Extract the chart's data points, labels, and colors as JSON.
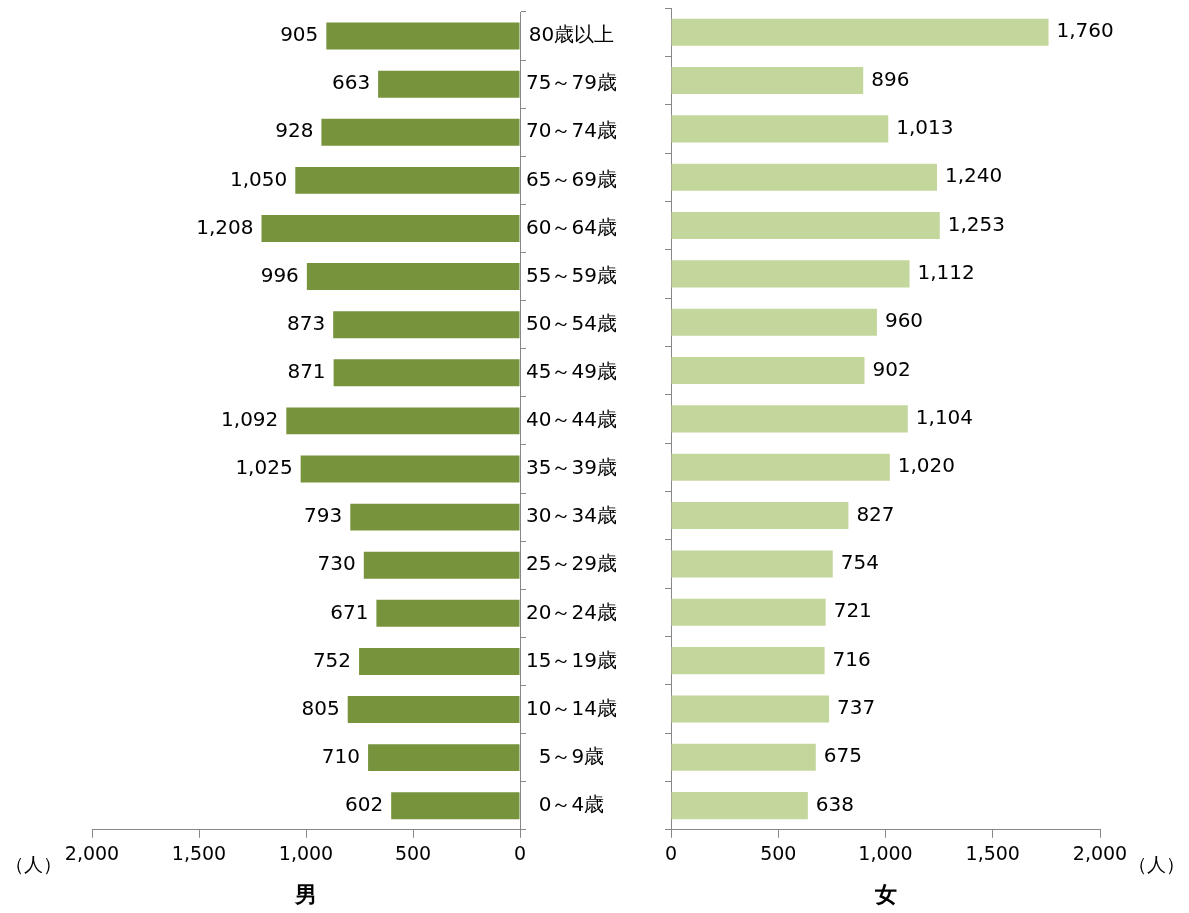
{
  "chart_data": [
    {
      "type": "bar",
      "orientation": "horizontal",
      "xlabel": "男",
      "annotations": [
        "（人）"
      ],
      "grid": false,
      "legend": false,
      "categories": [
        "80歳以上",
        "75～79歳",
        "70～74歳",
        "65～69歳",
        "60～64歳",
        "55～59歳",
        "50～54歳",
        "45～49歳",
        "40～44歳",
        "35～39歳",
        "30～34歳",
        "25～29歳",
        "20～24歳",
        "15～19歳",
        "10～14歳",
        "5～9歳",
        "0～4歳"
      ],
      "series": [
        {
          "color": "#77933c",
          "values": [
            905,
            663,
            928,
            1050,
            1208,
            996,
            873,
            871,
            1092,
            1025,
            793,
            730,
            671,
            752,
            805,
            710,
            602
          ],
          "value_labels": [
            "905",
            "663",
            "928",
            "1,050",
            "1,208",
            "996",
            "873",
            "871",
            "1,092",
            "1,025",
            "793",
            "730",
            "671",
            "752",
            "805",
            "710",
            "602"
          ]
        }
      ],
      "xlim": [
        2000,
        0
      ],
      "xticks": [
        {
          "value": 2000,
          "label": "2,000"
        },
        {
          "value": 1500,
          "label": "1,500"
        },
        {
          "value": 1000,
          "label": "1,000"
        },
        {
          "value": 500,
          "label": "500"
        },
        {
          "value": 0,
          "label": "0"
        }
      ]
    },
    {
      "type": "bar",
      "orientation": "horizontal",
      "xlabel": "女",
      "annotations": [
        "（人）"
      ],
      "grid": false,
      "legend": false,
      "tick_labels": "x",
      "categories": [
        null,
        null,
        null,
        null,
        null,
        null,
        null,
        null,
        null,
        null,
        null,
        null,
        null,
        null,
        null,
        null,
        null
      ],
      "series": [
        {
          "color": "#c3d69b",
          "values": [
            1760,
            896,
            1013,
            1240,
            1253,
            1112,
            960,
            902,
            1104,
            1020,
            827,
            754,
            721,
            716,
            737,
            675,
            638
          ],
          "value_labels": [
            "1,760",
            "896",
            "1,013",
            "1,240",
            "1,253",
            "1,112",
            "960",
            "902",
            "1,104",
            "1,020",
            "827",
            "754",
            "721",
            "716",
            "737",
            "675",
            "638"
          ]
        }
      ],
      "xlim": [
        0,
        2000
      ],
      "xticks": [
        {
          "value": 0,
          "label": "0"
        },
        {
          "value": 500,
          "label": "500"
        },
        {
          "value": 1000,
          "label": "1,000"
        },
        {
          "value": 1500,
          "label": "1,500"
        },
        {
          "value": 2000,
          "label": "2,000"
        }
      ]
    }
  ]
}
